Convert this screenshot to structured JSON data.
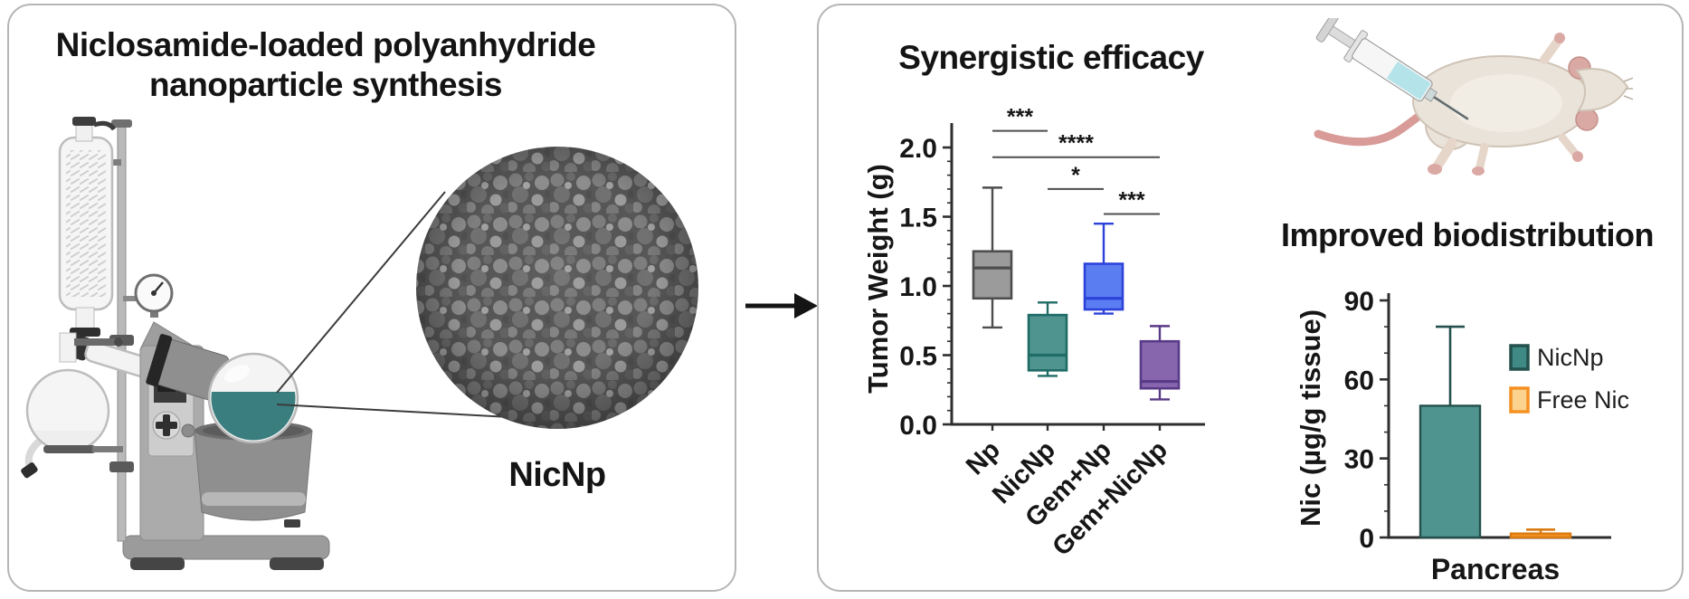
{
  "panels": {
    "synthesis": {
      "title_line1": "Niclosamide-loaded polyanhydride",
      "title_line2": "nanoparticle synthesis",
      "sem_label": "NicNp"
    },
    "results": {
      "efficacy_title": "Synergistic efficacy",
      "biodistribution_title": "Improved biodistribution"
    }
  },
  "chart_data": [
    {
      "id": "tumor-weight-boxplot",
      "type": "box",
      "title": "Synergistic efficacy",
      "ylabel": "Tumor Weight (g)",
      "ylim": [
        0,
        2.0
      ],
      "yticks": [
        "0.0",
        "0.5",
        "1.0",
        "1.5",
        "2.0"
      ],
      "minor_tick_step": 0.1,
      "categories": [
        "Np",
        "NicNp",
        "Gem+Np",
        "Gem+NicNp"
      ],
      "series": [
        {
          "name": "Np",
          "fill": "#9b9b9b",
          "stroke": "#4d4d4d",
          "min": 0.7,
          "q1": 0.91,
          "median": 1.13,
          "q3": 1.25,
          "max": 1.71
        },
        {
          "name": "NicNp",
          "fill": "#4f948f",
          "stroke": "#1f6b66",
          "min": 0.35,
          "q1": 0.39,
          "median": 0.5,
          "q3": 0.79,
          "max": 0.88
        },
        {
          "name": "Gem+Np",
          "fill": "#5b7df2",
          "stroke": "#2c42d9",
          "min": 0.8,
          "q1": 0.83,
          "median": 0.91,
          "q3": 1.16,
          "max": 1.45
        },
        {
          "name": "Gem+NicNp",
          "fill": "#8766ae",
          "stroke": "#593a86",
          "min": 0.18,
          "q1": 0.26,
          "median": 0.31,
          "q3": 0.6,
          "max": 0.71
        }
      ],
      "significance": [
        {
          "between": [
            0,
            1
          ],
          "label": "***",
          "level": 2.12
        },
        {
          "between": [
            0,
            3
          ],
          "label": "****",
          "level": 1.93
        },
        {
          "between": [
            1,
            2
          ],
          "label": "*",
          "level": 1.7
        },
        {
          "between": [
            2,
            3
          ],
          "label": "***",
          "level": 1.52
        }
      ]
    },
    {
      "id": "biodistribution-bar",
      "type": "bar",
      "title": "Improved biodistribution",
      "ylabel": "Nic (µg/g tissue)",
      "xlabel": "Pancreas",
      "ylim": [
        0,
        90
      ],
      "yticks": [
        0,
        30,
        60,
        90
      ],
      "minor_tick_step": 10,
      "categories": [
        "Pancreas"
      ],
      "series": [
        {
          "name": "NicNp",
          "value": 50,
          "error_plus": 30,
          "fill": "#4f948f",
          "stroke": "#24504d",
          "legend_fill": "#3f8a85",
          "legend_stroke": "#24504d"
        },
        {
          "name": "Free Nic",
          "value": 1.5,
          "error_plus": 1.5,
          "fill": "#f59122",
          "stroke": "#d97b12",
          "legend_fill": "#fbd38f",
          "legend_stroke": "#f59122"
        }
      ],
      "legend": {
        "position": "right",
        "items": [
          "NicNp",
          "Free Nic"
        ]
      }
    }
  ],
  "colors": {
    "panel_border": "#b5b5b5",
    "arrow": "#141414",
    "axis": "#2e2e2e",
    "significance_line": "#4d4d4d",
    "flask_liquid_teal": "#3a7e80",
    "mouse_body": "#eae3da",
    "mouse_pink": "#dba9a4",
    "syringe_liquid": "#b5e3ea",
    "sem_background": "#575757"
  }
}
